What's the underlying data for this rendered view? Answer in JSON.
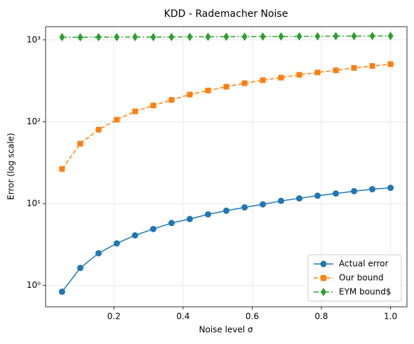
{
  "chart_data": {
    "type": "line",
    "title": "KDD - Rademacher Noise",
    "x_label": "Noise level σ",
    "y_label": "Error (log scale)",
    "x": [
      0.05,
      0.1028,
      0.1556,
      0.2083,
      0.2611,
      0.3139,
      0.3667,
      0.4194,
      0.4722,
      0.525,
      0.5778,
      0.6306,
      0.6833,
      0.7361,
      0.7889,
      0.8417,
      0.8944,
      0.9472,
      1.0
    ],
    "series": [
      {
        "name": "Actual error",
        "color": "#1f77b4",
        "marker": "circle",
        "linestyle": "solid",
        "values": [
          0.84,
          1.64,
          2.48,
          3.27,
          4.1,
          4.9,
          5.8,
          6.5,
          7.4,
          8.2,
          9.0,
          9.8,
          10.8,
          11.6,
          12.5,
          13.3,
          14.2,
          15.0,
          15.6
        ]
      },
      {
        "name": "Our bound",
        "color": "#ff7f0e",
        "marker": "square",
        "linestyle": "dashed",
        "values": [
          26.5,
          54,
          80,
          106,
          134,
          158,
          185,
          215,
          241,
          268,
          296,
          322,
          346,
          375,
          400,
          425,
          455,
          480,
          505
        ]
      },
      {
        "name": "EYM bound$",
        "color": "#2ca02c",
        "marker": "diamond",
        "linestyle": "dashdot",
        "values": [
          1080,
          1075,
          1080,
          1080,
          1085,
          1080,
          1085,
          1090,
          1090,
          1095,
          1095,
          1100,
          1100,
          1105,
          1105,
          1110,
          1110,
          1115,
          1115
        ]
      }
    ],
    "xlim": [
      0.0025,
      1.0475
    ],
    "xticks": [
      0.2,
      0.4,
      0.6,
      0.8,
      {
        "value": 1.0,
        "label": "1.0"
      }
    ],
    "ylim": [
      0.55,
      1450
    ],
    "y_scale": "log",
    "yticks": [
      {
        "value": 1,
        "label": "10⁰"
      },
      {
        "value": 10,
        "label": "10¹"
      },
      {
        "value": 100,
        "label": "10²"
      },
      {
        "value": 1000,
        "label": "10³"
      }
    ],
    "grid": true,
    "legend": "lower right"
  }
}
